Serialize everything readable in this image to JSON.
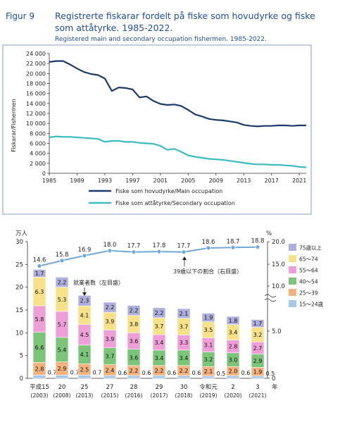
{
  "chart_data": [
    {
      "type": "line",
      "figure_label": "Figur 9",
      "title": "Registrerte fiskarar fordelt på fiske som hovudyrke og fiske som attåtyrke. 1985-2022.",
      "subtitle": "Registered main and secondary occupation fishermen. 1985-2022.",
      "ylabel": "Fiskarar/Fishermen",
      "xlabel": "",
      "ylim": [
        0,
        24000
      ],
      "yticks": [
        "0",
        "2 000",
        "4 000",
        "6 000",
        "8 000",
        "10 000",
        "12 000",
        "14 000",
        "16 000",
        "18 000",
        "20 000",
        "22 000",
        "24 000"
      ],
      "xticks": [
        "1985",
        "1989",
        "1993",
        "1997",
        "2001",
        "2005",
        "2009",
        "2013",
        "2017",
        "2021"
      ],
      "grid": false,
      "legend_position": "bottom",
      "x": [
        1985,
        1986,
        1987,
        1988,
        1989,
        1990,
        1991,
        1992,
        1993,
        1994,
        1995,
        1996,
        1997,
        1998,
        1999,
        2000,
        2001,
        2002,
        2003,
        2004,
        2005,
        2006,
        2007,
        2008,
        2009,
        2010,
        2011,
        2012,
        2013,
        2014,
        2015,
        2016,
        2017,
        2018,
        2019,
        2020,
        2021,
        2022
      ],
      "series": [
        {
          "name": "Fiske som hovudyrke/Main occupation",
          "color": "#1b3a6b",
          "values": [
            22300,
            22500,
            22500,
            21800,
            21000,
            20300,
            19900,
            19700,
            19000,
            16500,
            17200,
            17100,
            16800,
            15200,
            15400,
            14500,
            13900,
            13700,
            13800,
            13500,
            12700,
            11800,
            11400,
            10900,
            10700,
            10600,
            10400,
            10200,
            9700,
            9500,
            9400,
            9500,
            9500,
            9600,
            9600,
            9500,
            9600,
            9600
          ]
        },
        {
          "name": "Fiske som attåtyrke/Secondary occupation",
          "color": "#3bbcc0",
          "values": [
            7200,
            7400,
            7300,
            7300,
            7200,
            7100,
            7000,
            6900,
            6300,
            6500,
            6500,
            6300,
            6300,
            6100,
            6000,
            5900,
            5500,
            4700,
            4900,
            4300,
            3600,
            3300,
            3100,
            2900,
            2800,
            2700,
            2500,
            2300,
            2100,
            1900,
            1800,
            1800,
            1700,
            1700,
            1600,
            1500,
            1300,
            1200
          ]
        }
      ]
    },
    {
      "type": "bar",
      "stacked": true,
      "yunit_left": "万人",
      "yunit_right": "%",
      "ylim": [
        0,
        30
      ],
      "yticks": [
        "0",
        "5",
        "10",
        "15",
        "20",
        "25",
        "30"
      ],
      "ylim_right_ticks": [
        "20.0",
        "15.0",
        "10.0",
        "5.0",
        "0"
      ],
      "categories": [
        "平成15",
        "20",
        "25",
        "27",
        "28",
        "29",
        "30",
        "令和元",
        "2",
        "3"
      ],
      "category_years": [
        "(2003)",
        "(2008)",
        "(2013)",
        "(2015)",
        "(2016)",
        "(2017)",
        "(2018)",
        "(2019)",
        "(2020)",
        "(2021)"
      ],
      "year_unit": "年",
      "series": [
        {
          "name": "15～24歳",
          "color": "#a7c9e6",
          "values": [
            0.7,
            0.7,
            0.7,
            0.6,
            0.6,
            0.6,
            0.6,
            0.5,
            0.6,
            0.5
          ]
        },
        {
          "name": "25～39",
          "color": "#f4b27e",
          "values": [
            2.8,
            2.9,
            2.5,
            2.4,
            2.2,
            2.2,
            2.2,
            2.1,
            2.0,
            1.9
          ]
        },
        {
          "name": "40～54",
          "color": "#7cc47a",
          "values": [
            6.6,
            5.4,
            4.1,
            3.7,
            3.6,
            3.4,
            3.4,
            3.2,
            3.0,
            2.9
          ]
        },
        {
          "name": "55～64",
          "color": "#ee9fd8",
          "values": [
            5.8,
            5.7,
            4.5,
            3.9,
            3.6,
            3.4,
            3.3,
            3.1,
            2.8,
            2.7
          ]
        },
        {
          "name": "65～74",
          "color": "#f7e18a",
          "values": [
            6.3,
            5.3,
            4.1,
            3.9,
            3.8,
            3.7,
            3.7,
            3.5,
            3.4,
            3.2
          ]
        },
        {
          "name": "75歳以上",
          "color": "#aeb0dc",
          "values": [
            1.7,
            2.2,
            2.3,
            2.2,
            2.2,
            2.2,
            2.1,
            1.9,
            1.8,
            1.7
          ]
        }
      ],
      "rate_series": {
        "name": "39歳以下の割合（右目盛）",
        "values": [
          14.6,
          15.8,
          16.9,
          18.0,
          17.7,
          17.8,
          17.7,
          18.6,
          18.7,
          18.8
        ]
      },
      "annotations": {
        "workers": "就業者数（左目盛）",
        "rate": "39歳以下の割合（右目盛）"
      }
    }
  ]
}
